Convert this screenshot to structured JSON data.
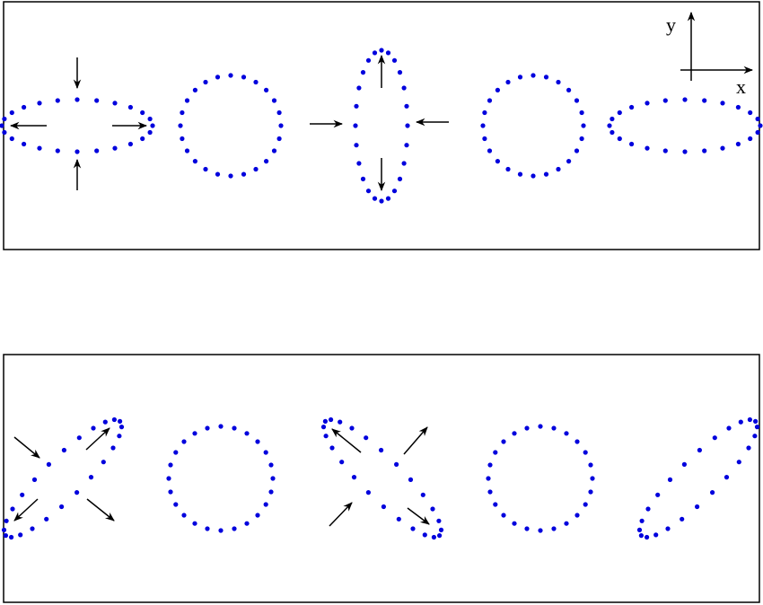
{
  "axis_indicator": {
    "x_label": "x",
    "y_label": "y"
  },
  "colors": {
    "ring_dots": "#0000dd",
    "arrows": "#000000",
    "frame": "#000000",
    "background": "#ffffff"
  },
  "panels": [
    {
      "name": "top-panel",
      "description_key": "plus-polarization",
      "rings": [
        "horizontal-ellipse",
        "circle",
        "vertical-ellipse",
        "circle",
        "horizontal-ellipse"
      ]
    },
    {
      "name": "bottom-panel",
      "description_key": "cross-polarization",
      "rings": [
        "diagonal-ellipse-rising",
        "circle",
        "diagonal-ellipse-falling",
        "circle",
        "diagonal-ellipse-rising"
      ]
    }
  ]
}
